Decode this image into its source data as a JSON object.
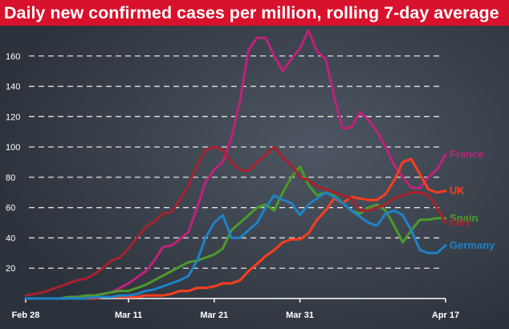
{
  "chart_data": {
    "type": "line",
    "title": "Daily new confirmed cases per million, rolling 7-day average",
    "xlabel": "",
    "ylabel": "",
    "x": [
      "Feb 28",
      "Feb 29",
      "Mar 1",
      "Mar 2",
      "Mar 3",
      "Mar 4",
      "Mar 5",
      "Mar 6",
      "Mar 7",
      "Mar 8",
      "Mar 9",
      "Mar 10",
      "Mar 11",
      "Mar 12",
      "Mar 13",
      "Mar 14",
      "Mar 15",
      "Mar 16",
      "Mar 17",
      "Mar 18",
      "Mar 19",
      "Mar 20",
      "Mar 21",
      "Mar 22",
      "Mar 23",
      "Mar 24",
      "Mar 25",
      "Mar 26",
      "Mar 27",
      "Mar 28",
      "Mar 29",
      "Mar 30",
      "Mar 31",
      "Apr 1",
      "Apr 2",
      "Apr 3",
      "Apr 4",
      "Apr 5",
      "Apr 6",
      "Apr 7",
      "Apr 8",
      "Apr 9",
      "Apr 10",
      "Apr 11",
      "Apr 12",
      "Apr 13",
      "Apr 14",
      "Apr 15",
      "Apr 16",
      "Apr 17"
    ],
    "x_ticks": [
      "Feb 28",
      "Mar 11",
      "Mar 21",
      "Mar 31",
      "Apr 17"
    ],
    "ylim": [
      0,
      180
    ],
    "y_ticks": [
      20,
      40,
      60,
      80,
      100,
      120,
      140,
      160
    ],
    "grid": "horizontal dashed",
    "legend": "labels at line ends",
    "series": [
      {
        "name": "France",
        "color": "#c0217a",
        "values": [
          0,
          0,
          0,
          0,
          0,
          1,
          1,
          1,
          2,
          3,
          4,
          7,
          10,
          14,
          18,
          25,
          34,
          35,
          39,
          44,
          60,
          77,
          85,
          90,
          106,
          130,
          164,
          172,
          172,
          160,
          150,
          158,
          165,
          177,
          163,
          158,
          133,
          112,
          113,
          123,
          118,
          110,
          100,
          88,
          80,
          73,
          73,
          80,
          85,
          95
        ]
      },
      {
        "name": "UK",
        "color": "#ff3c1e",
        "values": [
          0,
          0,
          0,
          0,
          0,
          0,
          0,
          0,
          0,
          1,
          1,
          1,
          1,
          1,
          2,
          2,
          2,
          3,
          5,
          5,
          7,
          7,
          8,
          10,
          10,
          12,
          18,
          23,
          28,
          32,
          37,
          39,
          39,
          43,
          52,
          58,
          66,
          63,
          67,
          66,
          65,
          65,
          69,
          78,
          90,
          92,
          82,
          72,
          70,
          71
        ]
      },
      {
        "name": "Spain",
        "color": "#4c9a2a",
        "values": [
          0,
          0,
          0,
          0,
          0,
          1,
          1,
          2,
          2,
          3,
          4,
          5,
          5,
          7,
          9,
          12,
          15,
          18,
          21,
          24,
          25,
          27,
          29,
          33,
          45,
          50,
          55,
          60,
          62,
          58,
          70,
          80,
          87,
          75,
          68,
          70,
          68,
          63,
          58,
          56,
          60,
          62,
          58,
          48,
          37,
          45,
          52,
          52,
          53,
          53
        ]
      },
      {
        "name": "Italy",
        "color": "#a8212c",
        "values": [
          2,
          3,
          4,
          6,
          8,
          10,
          12,
          13,
          16,
          20,
          25,
          27,
          33,
          40,
          47,
          51,
          56,
          57,
          65,
          75,
          88,
          98,
          100,
          98,
          90,
          85,
          84,
          90,
          95,
          100,
          93,
          88,
          80,
          78,
          74,
          72,
          70,
          68,
          66,
          58,
          58,
          60,
          62,
          66,
          68,
          70,
          70,
          68,
          60,
          50
        ]
      },
      {
        "name": "Germany",
        "color": "#1e82c8",
        "values": [
          0,
          0,
          0,
          0,
          0,
          0,
          0,
          0,
          1,
          1,
          1,
          2,
          2,
          3,
          5,
          6,
          8,
          10,
          12,
          15,
          25,
          40,
          50,
          55,
          40,
          40,
          45,
          50,
          60,
          68,
          65,
          63,
          55,
          62,
          66,
          70,
          67,
          63,
          58,
          54,
          50,
          48,
          56,
          58,
          55,
          45,
          32,
          30,
          30,
          35
        ]
      }
    ]
  }
}
